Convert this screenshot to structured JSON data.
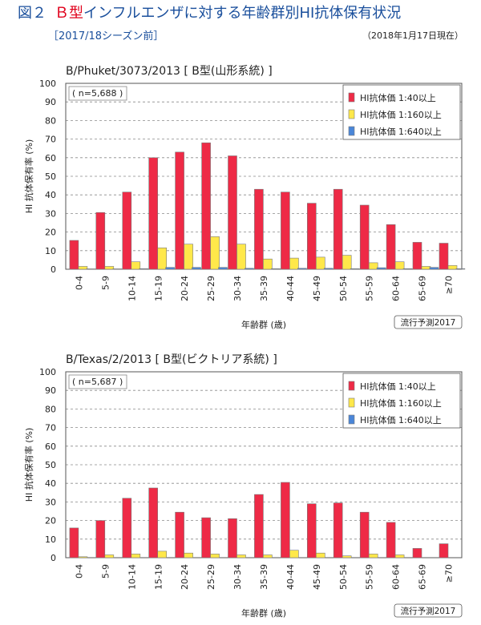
{
  "header": {
    "fig_label": "図２",
    "btype": "Ｂ型",
    "title_rest": "インフルエンザに対する年齢群別HI抗体保有状況",
    "subtitle": "［2017/18シーズン前］",
    "date": "（2018年1月17日現在）"
  },
  "colors": {
    "red": "#ee2a46",
    "yellow": "#ffe84a",
    "blue": "#4a86d8"
  },
  "chart_data": [
    {
      "type": "bar",
      "title": "B/Phuket/3073/2013 [ B型(山形系統) ]",
      "sample": "( n=5,688 )",
      "ylabel": "HI 抗体保有率 (%)",
      "xlabel": "年齢群 (歳)",
      "note": "流行予測2017",
      "ylim": [
        0,
        100
      ],
      "yticks": [
        "0",
        "10",
        "20",
        "30",
        "40",
        "50",
        "60",
        "70",
        "80",
        "90",
        "100"
      ],
      "grid": true,
      "legend_position": "top-right",
      "categories": [
        "0-4",
        "5-9",
        "10-14",
        "15-19",
        "20-24",
        "25-29",
        "30-34",
        "35-39",
        "40-44",
        "45-49",
        "50-54",
        "55-59",
        "60-64",
        "65-69",
        "≥70"
      ],
      "series": [
        {
          "name": "HI抗体価 1:40以上",
          "color": "red",
          "values": [
            15.5,
            30.5,
            41.5,
            60,
            63,
            68,
            61,
            43,
            41.5,
            35.5,
            43,
            34.5,
            24,
            14.5,
            14
          ]
        },
        {
          "name": "HI抗体価 1:160以上",
          "color": "yellow",
          "values": [
            1.5,
            1.5,
            4,
            11.5,
            13.5,
            17.5,
            13.5,
            5.5,
            6,
            6.5,
            7.5,
            3.5,
            4,
            1.5,
            2
          ]
        },
        {
          "name": "HI抗体価 1:640以上",
          "color": "blue",
          "values": [
            0.2,
            0.2,
            0.3,
            1,
            1,
            1,
            0.5,
            0.3,
            0.5,
            0.5,
            0.3,
            0.8,
            0.3,
            1,
            0.3
          ]
        }
      ]
    },
    {
      "type": "bar",
      "title": "B/Texas/2/2013 [ B型(ビクトリア系統) ]",
      "sample": "( n=5,687 )",
      "ylabel": "HI 抗体保有率 (%)",
      "xlabel": "年齢群 (歳)",
      "note": "流行予測2017",
      "ylim": [
        0,
        100
      ],
      "yticks": [
        "0",
        "10",
        "20",
        "30",
        "40",
        "50",
        "60",
        "70",
        "80",
        "90",
        "100"
      ],
      "grid": true,
      "legend_position": "top-right",
      "categories": [
        "0-4",
        "5-9",
        "10-14",
        "15-19",
        "20-24",
        "25-29",
        "30-34",
        "35-39",
        "40-44",
        "45-49",
        "50-54",
        "55-59",
        "60-64",
        "65-69",
        "≥70"
      ],
      "series": [
        {
          "name": "HI抗体価 1:40以上",
          "color": "red",
          "values": [
            16,
            20,
            32,
            37.5,
            24.5,
            21.5,
            21,
            34,
            40.5,
            29,
            29.5,
            24.5,
            19,
            5,
            7.5
          ]
        },
        {
          "name": "HI抗体価 1:160以上",
          "color": "yellow",
          "values": [
            0.5,
            1.5,
            2,
            3.5,
            2.5,
            2,
            1.5,
            1.5,
            4,
            2.5,
            1,
            2,
            1.5,
            0,
            0
          ]
        },
        {
          "name": "HI抗体価 1:640以上",
          "color": "blue",
          "values": [
            0,
            0,
            0,
            0,
            0,
            0,
            0,
            0,
            0,
            0,
            0,
            0,
            0,
            0,
            0
          ]
        }
      ]
    }
  ]
}
